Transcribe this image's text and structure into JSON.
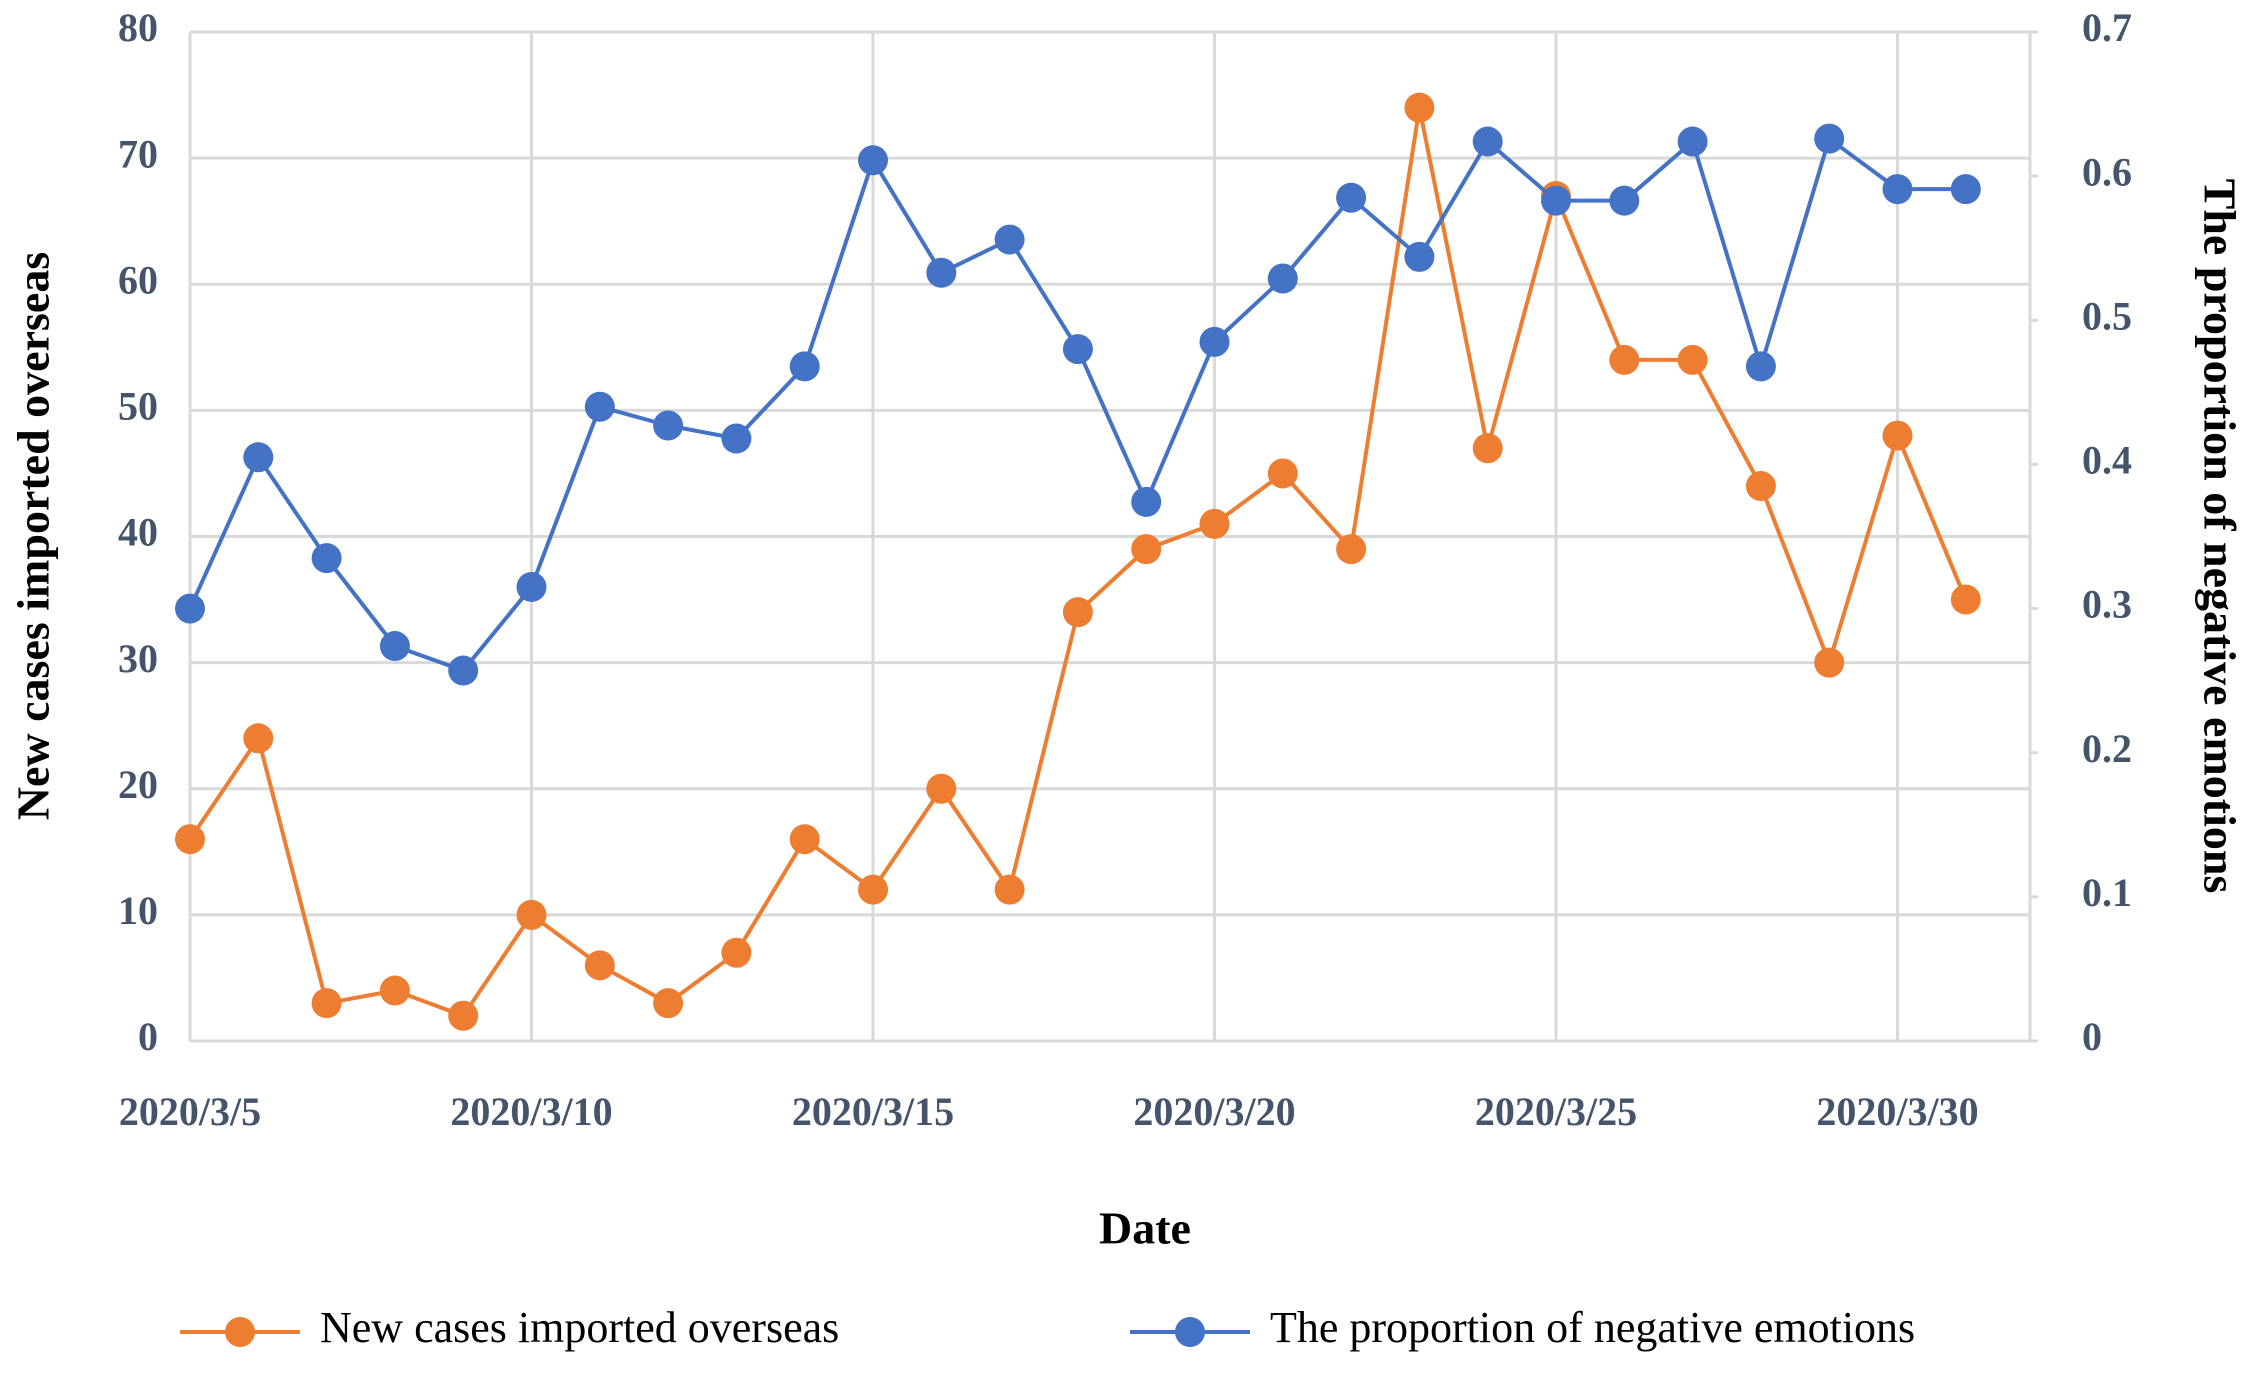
{
  "chart_data": {
    "type": "line",
    "categories": [
      "2020/3/5",
      null,
      null,
      null,
      null,
      "2020/3/10",
      null,
      null,
      null,
      null,
      "2020/3/15",
      null,
      null,
      null,
      null,
      "2020/3/20",
      null,
      null,
      null,
      null,
      "2020/3/25",
      null,
      null,
      null,
      null,
      "2020/3/30",
      null
    ],
    "x_label": "Date",
    "y_label": "New cases imported overseas",
    "y2_label": "The proportion of negative emotions",
    "ylim": [
      0,
      80
    ],
    "yticks": [
      0,
      10,
      20,
      30,
      40,
      50,
      60,
      70,
      80
    ],
    "y2lim": [
      0,
      0.7
    ],
    "y2ticks": [
      0,
      0.1,
      0.2,
      0.3,
      0.4,
      0.5,
      0.6,
      0.7
    ],
    "grid": true,
    "legend": "bottom",
    "series": [
      {
        "name": "New cases imported overseas",
        "color": "#ed7d31",
        "values": [
          16,
          24,
          3,
          4,
          2,
          10,
          6,
          3,
          7,
          16,
          12,
          20,
          12,
          34,
          39,
          41,
          45,
          39,
          74,
          47,
          67,
          54,
          54,
          44,
          30,
          48,
          35
        ]
      },
      {
        "name": "The proportion of negative emotions",
        "color": "#4472c4",
        "axis": "y2",
        "values": [
          0.3,
          0.405,
          0.335,
          0.274,
          0.257,
          0.315,
          0.44,
          0.427,
          0.418,
          0.468,
          0.611,
          0.533,
          0.556,
          0.48,
          0.374,
          0.485,
          0.529,
          0.585,
          0.544,
          0.624,
          0.583,
          0.583,
          0.624,
          0.468,
          0.626,
          0.591,
          0.591
        ]
      }
    ]
  }
}
